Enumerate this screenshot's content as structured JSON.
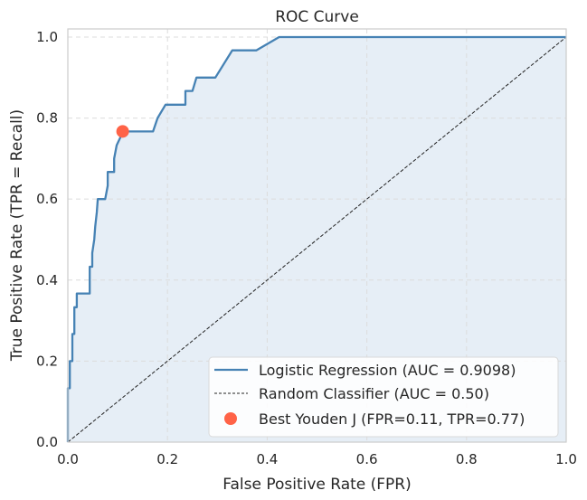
{
  "chart_data": {
    "type": "line",
    "title": "ROC Curve",
    "xlabel": "False Positive Rate (FPR)",
    "ylabel": "True Positive Rate (TPR = Recall)",
    "xlim": [
      0.0,
      1.0
    ],
    "ylim": [
      0.0,
      1.02
    ],
    "xticks": [
      "0.0",
      "0.2",
      "0.4",
      "0.6",
      "0.8",
      "1.0"
    ],
    "yticks": [
      "0.0",
      "0.2",
      "0.4",
      "0.6",
      "0.8",
      "1.0"
    ],
    "xtick_values": [
      0,
      0.2,
      0.4,
      0.6,
      0.8,
      1.0
    ],
    "ytick_values": [
      0,
      0.2,
      0.4,
      0.6,
      0.8,
      1.0
    ],
    "grid": true,
    "legend_position": "bottom-right",
    "series": [
      {
        "name": "Logistic Regression (AUC = 0.9098)",
        "kind": "roc",
        "color": "#4682b4",
        "fill": true,
        "x": [
          0.0,
          0.0,
          0.004,
          0.004,
          0.009,
          0.009,
          0.013,
          0.013,
          0.018,
          0.018,
          0.044,
          0.044,
          0.049,
          0.049,
          0.053,
          0.055,
          0.058,
          0.06,
          0.075,
          0.08,
          0.08,
          0.093,
          0.093,
          0.098,
          0.098,
          0.111,
          0.111,
          0.171,
          0.18,
          0.196,
          0.236,
          0.236,
          0.25,
          0.258,
          0.296,
          0.33,
          0.378,
          0.424,
          1.0
        ],
        "y": [
          0.0,
          0.133,
          0.133,
          0.2,
          0.2,
          0.267,
          0.267,
          0.333,
          0.333,
          0.367,
          0.367,
          0.433,
          0.433,
          0.467,
          0.5,
          0.533,
          0.567,
          0.6,
          0.6,
          0.633,
          0.667,
          0.667,
          0.7,
          0.733,
          0.733,
          0.767,
          0.767,
          0.767,
          0.8,
          0.833,
          0.833,
          0.867,
          0.867,
          0.9,
          0.9,
          0.967,
          0.967,
          1.0,
          1.0
        ]
      },
      {
        "name": "Random Classifier (AUC = 0.50)",
        "kind": "diagonal",
        "color": "#222222",
        "dashed": true,
        "x": [
          0.0,
          1.0
        ],
        "y": [
          0.0,
          1.0
        ]
      },
      {
        "name": "Best Youden J (FPR=0.11, TPR=0.77)",
        "kind": "point",
        "color": "#ff6347",
        "x": [
          0.11
        ],
        "y": [
          0.767
        ]
      }
    ],
    "auc": 0.9098
  },
  "colors": {
    "curve": "#4682b4",
    "fill": "#e6eef6",
    "diagonal": "#222222",
    "marker": "#ff6347",
    "grid": "#dcdcdc",
    "frame": "#cccccc"
  }
}
